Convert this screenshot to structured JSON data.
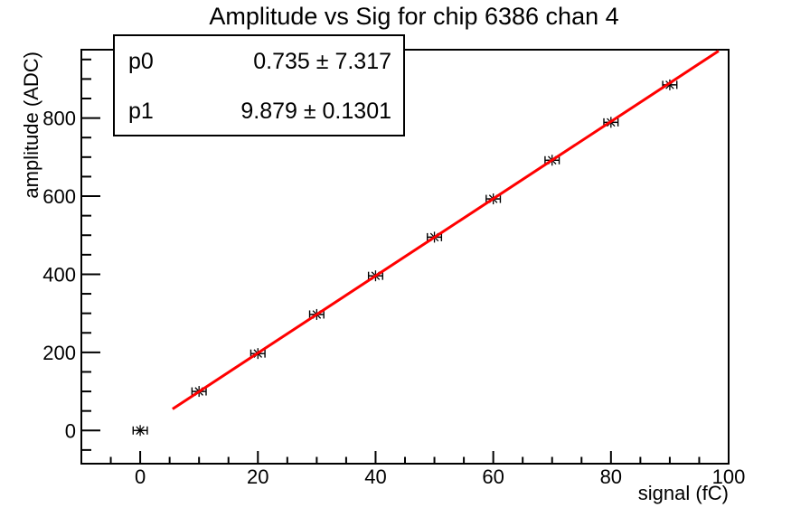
{
  "title": "Amplitude vs Sig for chip 6386 chan 4",
  "stats_box": {
    "rows": [
      {
        "name": "p0",
        "value": "0.735 ± 7.317"
      },
      {
        "name": "p1",
        "value": "9.879 ± 0.1301"
      }
    ]
  },
  "chart_data": {
    "type": "scatter",
    "title": "Amplitude vs Sig for chip 6386 chan 4",
    "xlabel": "signal (fC)",
    "ylabel": "amplitude (ADC)",
    "xlim": [
      -10,
      100
    ],
    "ylim": [
      -85,
      975
    ],
    "x_major_ticks": [
      0,
      20,
      40,
      60,
      80,
      100
    ],
    "y_major_ticks": [
      0,
      200,
      400,
      600,
      800
    ],
    "x_minor_step": 5,
    "y_minor_step": 50,
    "grid": false,
    "legend": "none",
    "points": {
      "x": [
        0,
        10,
        20,
        30,
        40,
        50,
        60,
        70,
        80,
        90
      ],
      "y": [
        0,
        100,
        197,
        297,
        396,
        495,
        593,
        692,
        789,
        885
      ],
      "x_err": 1.2,
      "marker": "asterisk",
      "marker_color": "#000000"
    },
    "fit": {
      "p0": 0.735,
      "p1": 9.879,
      "x_range": [
        5.5,
        98.3
      ],
      "color": "#ff0000",
      "line_width": 3
    },
    "colors": {
      "axis": "#000000",
      "background": "#ffffff",
      "fit_line": "#ff0000"
    }
  }
}
